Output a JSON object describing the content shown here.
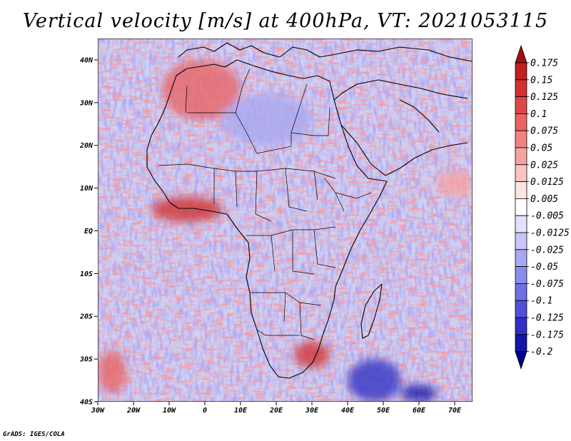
{
  "title": "Vertical velocity [m/s] at 400hPa, VT: 2021053115",
  "credit": "GrADS: IGES/COLA",
  "map": {
    "region": "Africa and surrounding oceans",
    "lon_range": [
      -30,
      75
    ],
    "lat_range": [
      -40,
      45
    ],
    "x_ticks": [
      {
        "lon": -30,
        "label": "30W"
      },
      {
        "lon": -20,
        "label": "20W"
      },
      {
        "lon": -10,
        "label": "10W"
      },
      {
        "lon": 0,
        "label": "0"
      },
      {
        "lon": 10,
        "label": "10E"
      },
      {
        "lon": 20,
        "label": "20E"
      },
      {
        "lon": 30,
        "label": "30E"
      },
      {
        "lon": 40,
        "label": "40E"
      },
      {
        "lon": 50,
        "label": "50E"
      },
      {
        "lon": 60,
        "label": "60E"
      },
      {
        "lon": 70,
        "label": "70E"
      }
    ],
    "y_ticks": [
      {
        "lat": 40,
        "label": "40N"
      },
      {
        "lat": 30,
        "label": "30N"
      },
      {
        "lat": 20,
        "label": "20N"
      },
      {
        "lat": 10,
        "label": "10N"
      },
      {
        "lat": 0,
        "label": "EQ"
      },
      {
        "lat": -10,
        "label": "10S"
      },
      {
        "lat": -20,
        "label": "20S"
      },
      {
        "lat": -30,
        "label": "30S"
      },
      {
        "lat": -40,
        "label": "40S"
      }
    ]
  },
  "colorbar": {
    "labels": [
      "0.175",
      "0.15",
      "0.125",
      "0.1",
      "0.075",
      "0.05",
      "0.025",
      "0.0125",
      "0.005",
      "-0.005",
      "-0.0125",
      "-0.025",
      "-0.05",
      "-0.075",
      "-0.1",
      "-0.125",
      "-0.175",
      "-0.2"
    ],
    "colors": [
      "#a01010",
      "#c02020",
      "#d23030",
      "#e04848",
      "#ea6464",
      "#f28282",
      "#f7a2a2",
      "#fbc4c4",
      "#fde4e4",
      "#ffffff",
      "#e2e2fc",
      "#c6c6f8",
      "#a8a8f2",
      "#8c8cec",
      "#7070e4",
      "#5050d8",
      "#3030c4",
      "#1414a8",
      "#00008a"
    ]
  },
  "chart_data": {
    "type": "heatmap",
    "title": "Vertical velocity [m/s] at 400hPa, VT: 2021053115",
    "variable": "Vertical velocity",
    "units": "m/s",
    "level": "400hPa",
    "valid_time": "2021053115",
    "x_range": [
      -30,
      75
    ],
    "y_range": [
      -40,
      45
    ],
    "contour_levels": [
      -0.2,
      -0.175,
      -0.125,
      -0.1,
      -0.075,
      -0.05,
      -0.025,
      -0.0125,
      -0.005,
      0.005,
      0.0125,
      0.025,
      0.05,
      0.075,
      0.1,
      0.125,
      0.15,
      0.175
    ],
    "notable_regions": [
      {
        "name": "Gulf of Guinea / West African coast",
        "lon": [
          -15,
          5
        ],
        "lat": [
          2,
          8
        ],
        "sign": "positive",
        "strength": 0.15
      },
      {
        "name": "Northwest Africa / Morocco",
        "lon": [
          -12,
          10
        ],
        "lat": [
          26,
          40
        ],
        "sign": "positive",
        "strength": 0.1
      },
      {
        "name": "Southeast Africa / Mozambique-Natal",
        "lon": [
          25,
          35
        ],
        "lat": [
          -32,
          -26
        ],
        "sign": "positive",
        "strength": 0.15
      },
      {
        "name": "South Atlantic southwest corner",
        "lon": [
          -30,
          -22
        ],
        "lat": [
          -38,
          -28
        ],
        "sign": "positive",
        "strength": 0.1
      },
      {
        "name": "Arabian Sea off Oman",
        "lon": [
          65,
          75
        ],
        "lat": [
          8,
          14
        ],
        "sign": "positive",
        "strength": 0.05
      },
      {
        "name": "Southwest Indian Ocean",
        "lon": [
          40,
          55
        ],
        "lat": [
          -40,
          -30
        ],
        "sign": "negative",
        "strength": -0.15
      },
      {
        "name": "South of Madagascar corner",
        "lon": [
          55,
          65
        ],
        "lat": [
          -40,
          -36
        ],
        "sign": "negative",
        "strength": -0.175
      },
      {
        "name": "Sahara / Libya-Egypt",
        "lon": [
          5,
          30
        ],
        "lat": [
          20,
          32
        ],
        "sign": "negative",
        "strength": -0.025
      },
      {
        "name": "Equatorial Atlantic",
        "lon": [
          -30,
          0
        ],
        "lat": [
          -20,
          0
        ],
        "sign": "mixed",
        "strength": 0.0
      }
    ]
  }
}
